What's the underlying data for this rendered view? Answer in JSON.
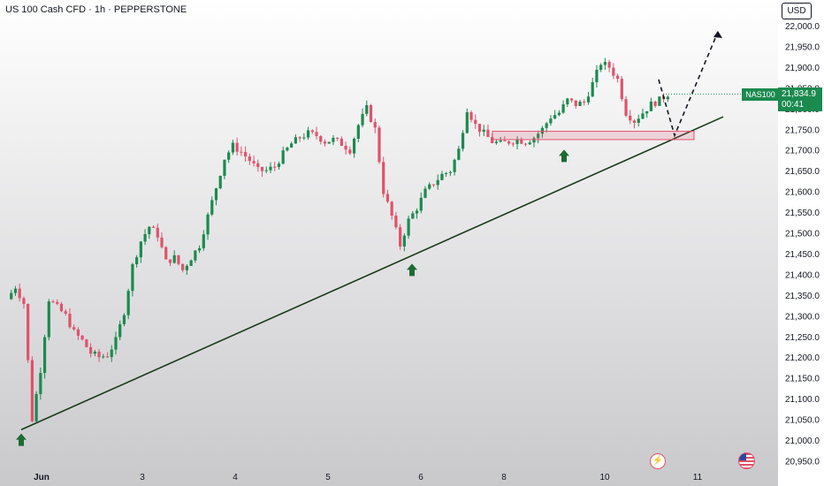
{
  "header": {
    "title": "US 100 Cash CFD · 1h · PEPPERSTONE",
    "currency": "USD"
  },
  "price_tag": {
    "symbol": "NAS100",
    "price": "21,834.9",
    "countdown": "00:41",
    "color": "#1b8a4e"
  },
  "colors": {
    "up": "#1b8a4e",
    "down": "#e0526b",
    "trendline": "#1b3a1b",
    "zone": "#e0526b",
    "arrow": "#1d6b33",
    "background_top": "#ffffff",
    "background_bottom": "#c9c9cc"
  },
  "icons": [
    "lightning-icon",
    "us-flag-icon",
    "up-arrow-marker-icon"
  ],
  "chart_data": {
    "type": "candlestick",
    "title": "US 100 Cash CFD · 1h · PEPPERSTONE",
    "x_ticks": [
      "Jun",
      "3",
      "4",
      "5",
      "6",
      "8",
      "10",
      "11"
    ],
    "y_ticks": [
      "22,000.0",
      "21,950.0",
      "21,900.0",
      "21,850.0",
      "21,800.0",
      "21,750.0",
      "21,700.0",
      "21,650.0",
      "21,600.0",
      "21,550.0",
      "21,500.0",
      "21,450.0",
      "21,400.0",
      "21,350.0",
      "21,300.0",
      "21,250.0",
      "21,200.0",
      "21,150.0",
      "21,100.0",
      "21,050.0",
      "21,000.0",
      "20,950.0"
    ],
    "ylim": [
      20940,
      22030
    ],
    "grid": false,
    "price_path": [
      [
        0,
        21340
      ],
      [
        2,
        21370
      ],
      [
        4,
        21330
      ],
      [
        6,
        21050
      ],
      [
        8,
        21170
      ],
      [
        10,
        21340
      ],
      [
        12,
        21320
      ],
      [
        14,
        21300
      ],
      [
        16,
        21260
      ],
      [
        18,
        21240
      ],
      [
        20,
        21210
      ],
      [
        22,
        21200
      ],
      [
        24,
        21205
      ],
      [
        26,
        21240
      ],
      [
        28,
        21310
      ],
      [
        30,
        21420
      ],
      [
        32,
        21480
      ],
      [
        34,
        21515
      ],
      [
        36,
        21495
      ],
      [
        38,
        21430
      ],
      [
        40,
        21440
      ],
      [
        42,
        21410
      ],
      [
        44,
        21440
      ],
      [
        46,
        21470
      ],
      [
        48,
        21540
      ],
      [
        50,
        21610
      ],
      [
        52,
        21680
      ],
      [
        54,
        21710
      ],
      [
        56,
        21695
      ],
      [
        58,
        21675
      ],
      [
        60,
        21650
      ],
      [
        62,
        21650
      ],
      [
        64,
        21660
      ],
      [
        66,
        21690
      ],
      [
        68,
        21715
      ],
      [
        70,
        21730
      ],
      [
        72,
        21740
      ],
      [
        74,
        21735
      ],
      [
        76,
        21720
      ],
      [
        78,
        21725
      ],
      [
        80,
        21715
      ],
      [
        82,
        21700
      ],
      [
        84,
        21760
      ],
      [
        86,
        21800
      ],
      [
        88,
        21750
      ],
      [
        90,
        21600
      ],
      [
        92,
        21540
      ],
      [
        94,
        21470
      ],
      [
        96,
        21530
      ],
      [
        98,
        21560
      ],
      [
        100,
        21600
      ],
      [
        102,
        21620
      ],
      [
        104,
        21640
      ],
      [
        106,
        21650
      ],
      [
        108,
        21700
      ],
      [
        110,
        21800
      ],
      [
        112,
        21760
      ],
      [
        114,
        21740
      ],
      [
        116,
        21720
      ],
      [
        118,
        21715
      ],
      [
        120,
        21720
      ],
      [
        122,
        21725
      ],
      [
        124,
        21720
      ],
      [
        126,
        21730
      ],
      [
        128,
        21750
      ],
      [
        130,
        21780
      ],
      [
        132,
        21790
      ],
      [
        134,
        21820
      ],
      [
        136,
        21810
      ],
      [
        138,
        21815
      ],
      [
        140,
        21860
      ],
      [
        142,
        21910
      ],
      [
        144,
        21900
      ],
      [
        146,
        21870
      ],
      [
        148,
        21790
      ],
      [
        150,
        21770
      ],
      [
        152,
        21790
      ],
      [
        154,
        21810
      ],
      [
        156,
        21820
      ],
      [
        158,
        21835
      ]
    ],
    "trendline": {
      "start": [
        "Jun",
        21025
      ],
      "end": [
        "11",
        21780
      ]
    },
    "resistance_zone": {
      "from": 21745,
      "to": 21725
    },
    "projection": [
      [
        21870
      ],
      [
        21735
      ],
      [
        21985
      ]
    ],
    "markers": [
      {
        "label": "up-arrow",
        "date": "Jun",
        "price": 21020
      },
      {
        "label": "up-arrow",
        "date": "6",
        "price": 21430
      },
      {
        "label": "up-arrow",
        "date": "8",
        "price": 21705
      }
    ],
    "current_price": 21834.9
  }
}
